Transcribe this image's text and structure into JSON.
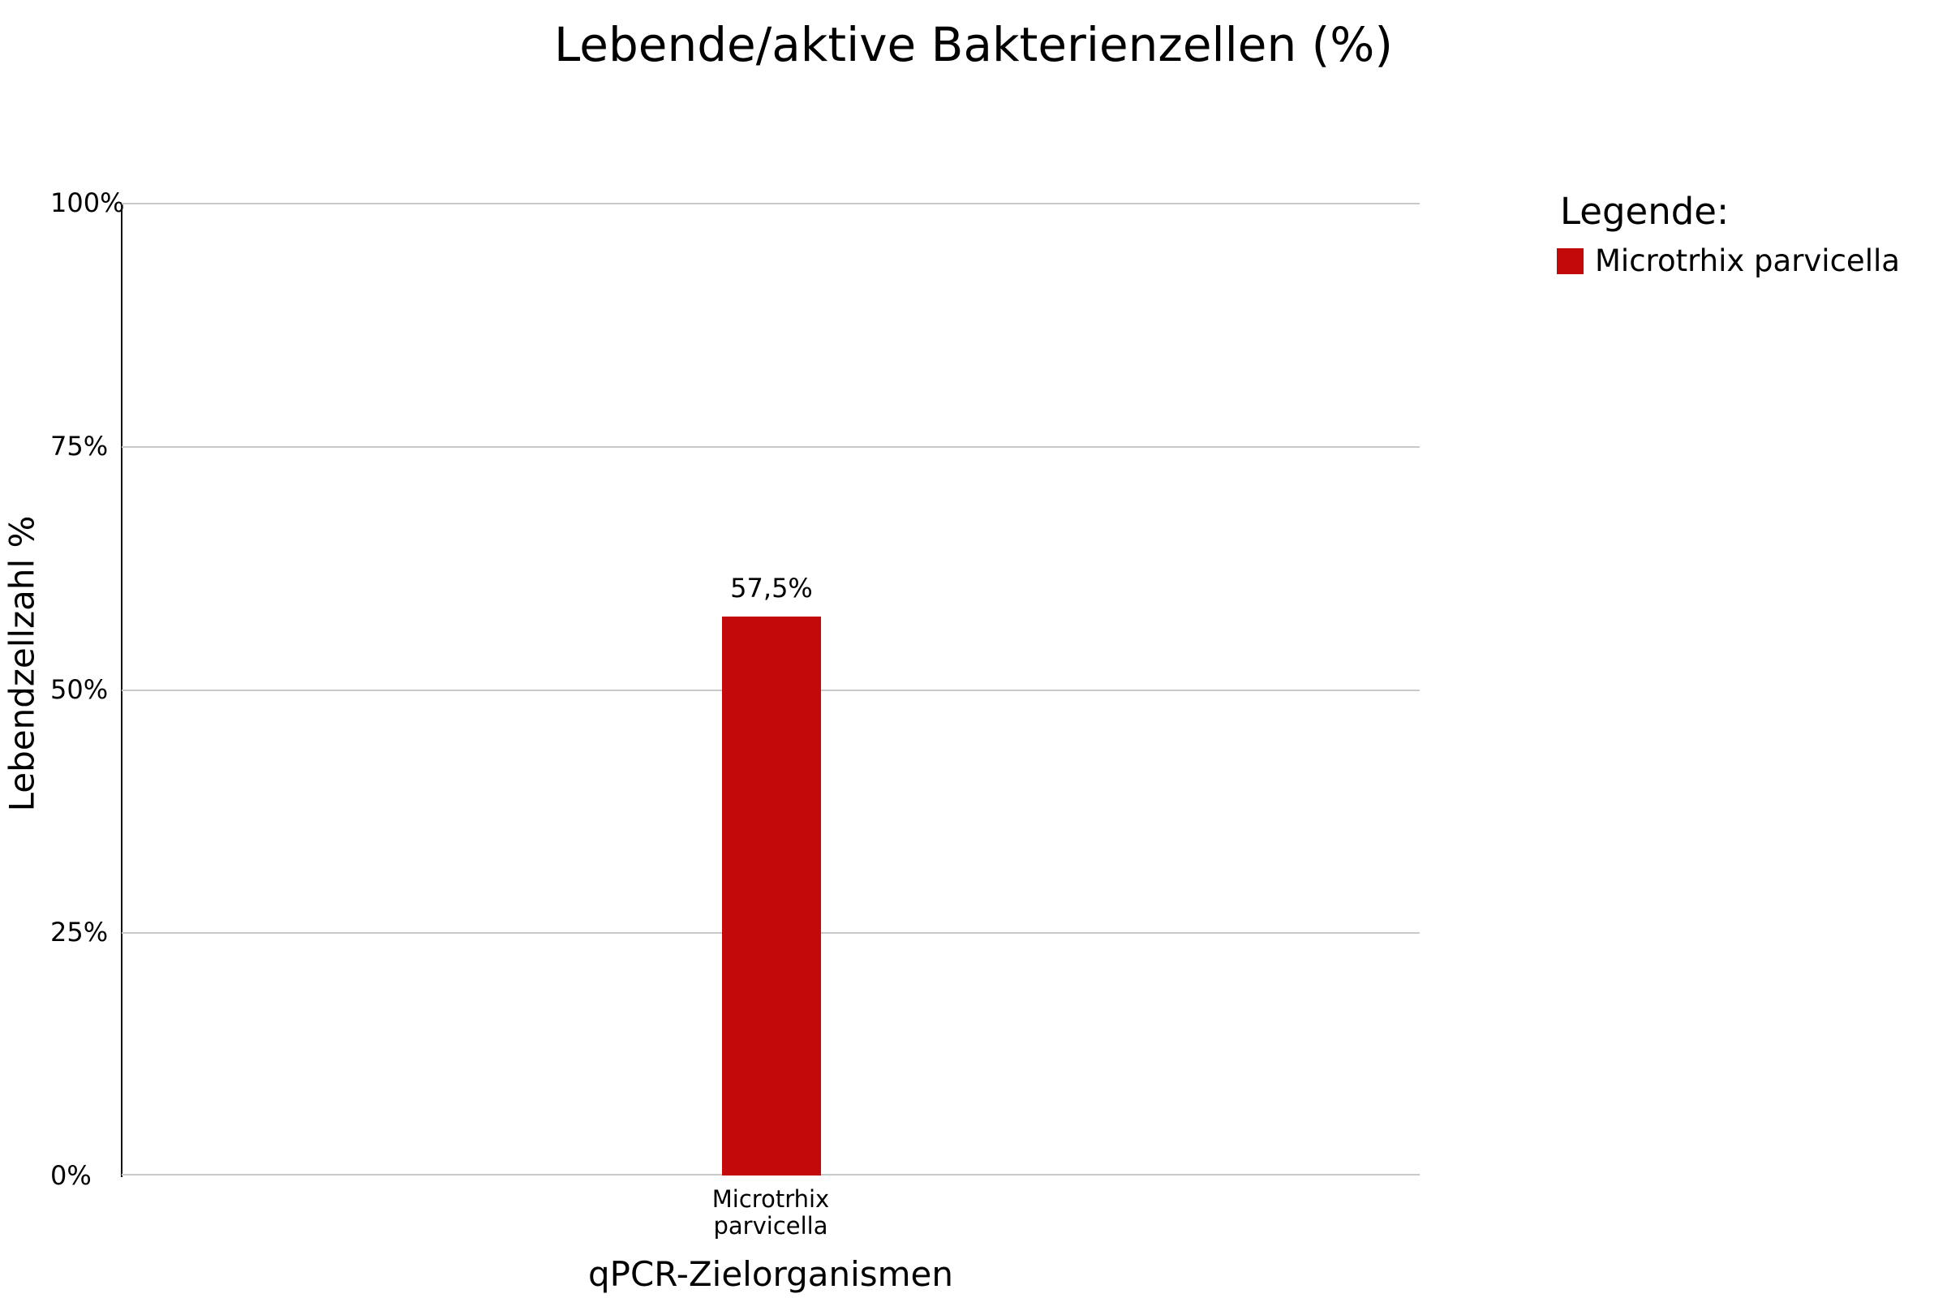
{
  "chart_data": {
    "type": "bar",
    "title": "Lebende/aktive Bakterienzellen (%)",
    "categories": [
      "Microtrhix parvicella"
    ],
    "values": [
      57.5
    ],
    "value_labels": [
      "57,5%"
    ],
    "xlabel": "qPCR-Zielorganismen",
    "ylabel": "Lebendzellzahl %",
    "ylim": [
      0,
      100
    ],
    "ytick_labels": [
      "0%",
      "25%",
      "50%",
      "75%",
      "100%"
    ],
    "grid": "horizontal, every 25%",
    "legend_position": "outside-upper-right",
    "bar_color": "#c20a0a"
  },
  "axes": {
    "y_ticks_display": [
      "100%",
      "75%",
      "50%",
      "25%",
      "0%"
    ]
  },
  "legend": {
    "title": "Legende:",
    "items": [
      {
        "label": "Microtrhix parvicella",
        "color": "#c20a0a"
      }
    ]
  },
  "colors": {
    "bar": "#c20a0a",
    "gridline": "#c9c9c9",
    "axis_line": "#111111",
    "text": "#000000",
    "background": "#ffffff"
  }
}
